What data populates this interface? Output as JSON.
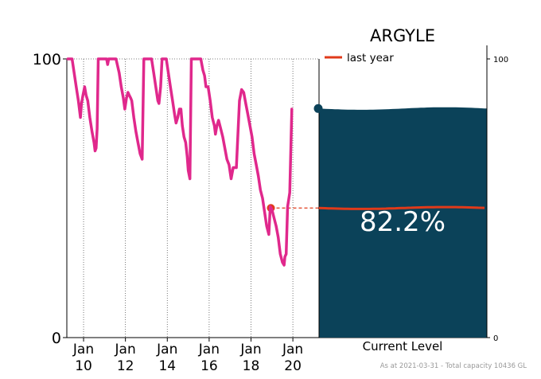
{
  "chart_data": {
    "type": "line",
    "title": "ARGYLE",
    "x_tick_labels": [
      {
        "month": "Jan",
        "year": "10",
        "x": 2010
      },
      {
        "month": "Jan",
        "year": "12",
        "x": 2012
      },
      {
        "month": "Jan",
        "year": "14",
        "x": 2014
      },
      {
        "month": "Jan",
        "year": "16",
        "x": 2016
      },
      {
        "month": "Jan",
        "year": "18",
        "x": 2018
      },
      {
        "month": "Jan",
        "year": "20",
        "x": 2020
      }
    ],
    "xlim": [
      2009.2,
      2021.25
    ],
    "ylim": [
      0,
      100
    ],
    "y_tick_labels": [
      "0",
      "100"
    ],
    "grid": "vertical dotted at each Jan tick, dotted at 100",
    "series": [
      {
        "color": "#e0288c",
        "points": [
          [
            2009.25,
            100
          ],
          [
            2009.45,
            100
          ],
          [
            2009.55,
            95
          ],
          [
            2009.65,
            90
          ],
          [
            2009.75,
            85
          ],
          [
            2009.85,
            79
          ],
          [
            2009.9,
            84
          ],
          [
            2009.97,
            87
          ],
          [
            2010.05,
            90
          ],
          [
            2010.12,
            87
          ],
          [
            2010.2,
            85
          ],
          [
            2010.3,
            79
          ],
          [
            2010.4,
            74
          ],
          [
            2010.5,
            70
          ],
          [
            2010.55,
            67
          ],
          [
            2010.6,
            68
          ],
          [
            2010.65,
            75
          ],
          [
            2010.7,
            100
          ],
          [
            2010.85,
            100
          ],
          [
            2011.0,
            100
          ],
          [
            2011.1,
            100
          ],
          [
            2011.15,
            98
          ],
          [
            2011.2,
            100
          ],
          [
            2011.3,
            100
          ],
          [
            2011.45,
            100
          ],
          [
            2011.55,
            100
          ],
          [
            2011.7,
            95
          ],
          [
            2011.8,
            90
          ],
          [
            2011.9,
            86
          ],
          [
            2011.97,
            82
          ],
          [
            2012.05,
            86
          ],
          [
            2012.12,
            88
          ],
          [
            2012.18,
            87
          ],
          [
            2012.25,
            86
          ],
          [
            2012.3,
            85
          ],
          [
            2012.4,
            79
          ],
          [
            2012.5,
            74
          ],
          [
            2012.6,
            70
          ],
          [
            2012.7,
            66
          ],
          [
            2012.8,
            64
          ],
          [
            2012.88,
            100
          ],
          [
            2013.0,
            100
          ],
          [
            2013.15,
            100
          ],
          [
            2013.25,
            100
          ],
          [
            2013.35,
            95
          ],
          [
            2013.45,
            90
          ],
          [
            2013.55,
            85
          ],
          [
            2013.6,
            84
          ],
          [
            2013.68,
            90
          ],
          [
            2013.75,
            100
          ],
          [
            2013.88,
            100
          ],
          [
            2013.95,
            100
          ],
          [
            2014.05,
            95
          ],
          [
            2014.15,
            90
          ],
          [
            2014.25,
            85
          ],
          [
            2014.35,
            80
          ],
          [
            2014.42,
            77
          ],
          [
            2014.5,
            79
          ],
          [
            2014.58,
            82
          ],
          [
            2014.65,
            82
          ],
          [
            2014.72,
            76
          ],
          [
            2014.8,
            72
          ],
          [
            2014.88,
            70
          ],
          [
            2014.95,
            65
          ],
          [
            2015.0,
            60
          ],
          [
            2015.08,
            57
          ],
          [
            2015.15,
            100
          ],
          [
            2015.3,
            100
          ],
          [
            2015.5,
            100
          ],
          [
            2015.6,
            100
          ],
          [
            2015.7,
            96
          ],
          [
            2015.78,
            94
          ],
          [
            2015.85,
            90
          ],
          [
            2015.95,
            90
          ],
          [
            2016.05,
            85
          ],
          [
            2016.15,
            79
          ],
          [
            2016.25,
            76
          ],
          [
            2016.3,
            73
          ],
          [
            2016.37,
            76
          ],
          [
            2016.45,
            78
          ],
          [
            2016.55,
            75
          ],
          [
            2016.65,
            72
          ],
          [
            2016.75,
            68
          ],
          [
            2016.85,
            64
          ],
          [
            2016.95,
            62
          ],
          [
            2017.05,
            57
          ],
          [
            2017.15,
            61
          ],
          [
            2017.3,
            61
          ],
          [
            2017.45,
            85
          ],
          [
            2017.55,
            89
          ],
          [
            2017.65,
            88
          ],
          [
            2017.75,
            84
          ],
          [
            2017.85,
            80
          ],
          [
            2017.95,
            76
          ],
          [
            2018.05,
            72
          ],
          [
            2018.15,
            66
          ],
          [
            2018.25,
            62
          ],
          [
            2018.35,
            58
          ],
          [
            2018.45,
            53
          ],
          [
            2018.55,
            50
          ],
          [
            2018.65,
            45
          ],
          [
            2018.75,
            40
          ],
          [
            2018.85,
            37
          ],
          [
            2018.92,
            47
          ],
          [
            2019.0,
            46
          ],
          [
            2019.1,
            43
          ],
          [
            2019.2,
            40
          ],
          [
            2019.3,
            36
          ],
          [
            2019.4,
            30
          ],
          [
            2019.5,
            27
          ],
          [
            2019.58,
            26
          ],
          [
            2019.62,
            29
          ],
          [
            2019.68,
            30
          ],
          [
            2019.75,
            47
          ],
          [
            2019.85,
            52
          ],
          [
            2019.95,
            82
          ]
        ]
      }
    ],
    "current_level": {
      "value": 82.2,
      "label": "82.2%",
      "panel_label": "Current Level",
      "panel_color": "#0b4259",
      "axis_ticks": [
        "0",
        "100"
      ],
      "last_year_value": 46.5,
      "last_year_color": "#e03a1a",
      "legend_label": "last year",
      "legend_position": "top-left of panel"
    },
    "footnote": "As at 2021-03-31 - Total capacity 10436 GL"
  }
}
